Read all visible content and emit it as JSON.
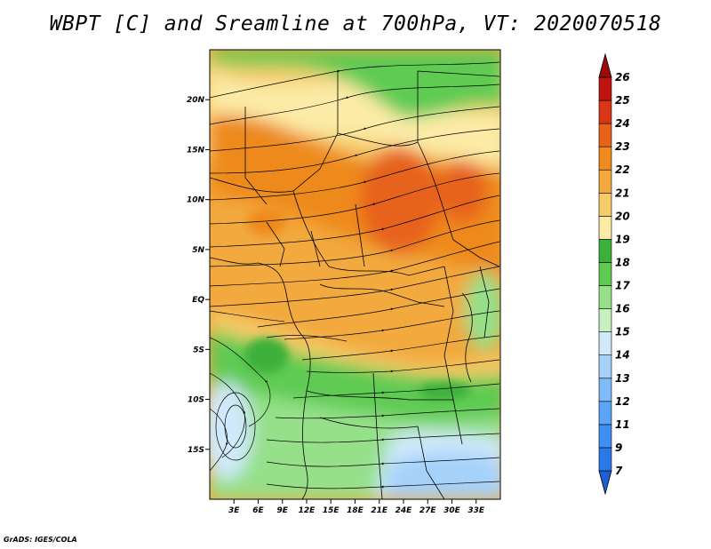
{
  "title": "WBPT [C] and Sreamline at 700hPa, VT: 2020070518",
  "credit": "GrADS: IGES/COLA",
  "chart_data": {
    "type": "heatmap",
    "title": "WBPT [C] and Sreamline at 700hPa, VT: 2020070518",
    "variable": "Wet-bulb potential temperature [C]",
    "overlay": "Streamlines at 700hPa",
    "valid_time": "2020070518",
    "xlim": [
      0,
      36
    ],
    "ylim": [
      -20,
      25
    ],
    "x_ticks": [
      {
        "value": 3,
        "label": "3E"
      },
      {
        "value": 6,
        "label": "6E"
      },
      {
        "value": 9,
        "label": "9E"
      },
      {
        "value": 12,
        "label": "12E"
      },
      {
        "value": 15,
        "label": "15E"
      },
      {
        "value": 18,
        "label": "18E"
      },
      {
        "value": 21,
        "label": "21E"
      },
      {
        "value": 24,
        "label": "24E"
      },
      {
        "value": 27,
        "label": "27E"
      },
      {
        "value": 30,
        "label": "30E"
      },
      {
        "value": 33,
        "label": "33E"
      }
    ],
    "y_ticks": [
      {
        "value": 20,
        "label": "20N"
      },
      {
        "value": 15,
        "label": "15N"
      },
      {
        "value": 10,
        "label": "10N"
      },
      {
        "value": 5,
        "label": "5N"
      },
      {
        "value": 0,
        "label": "EQ"
      },
      {
        "value": -5,
        "label": "5S"
      },
      {
        "value": -10,
        "label": "10S"
      },
      {
        "value": -15,
        "label": "15S"
      }
    ],
    "colorbar": {
      "levels": [
        7,
        9,
        11,
        12,
        13,
        14,
        15,
        16,
        17,
        18,
        19,
        20,
        21,
        22,
        23,
        24,
        25,
        26
      ],
      "colors": [
        "#1e5fd8",
        "#2c78e8",
        "#3e8fef",
        "#5aa5f5",
        "#7dbcf8",
        "#a6d2fa",
        "#d0e9fb",
        "#c8f0c0",
        "#96e08a",
        "#5fcb52",
        "#3cb03a",
        "#fbeba6",
        "#f6cc6a",
        "#f2a93e",
        "#ee8a1e",
        "#e7621a",
        "#d83616",
        "#c01410",
        "#9a0c0c"
      ]
    },
    "regions": [
      {
        "name": "northern-green-band",
        "value_range": "17-18"
      },
      {
        "name": "sahel-orange-band",
        "value_range": "21-23"
      },
      {
        "name": "equatorial-orange",
        "value_range": "21-22"
      },
      {
        "name": "southern-green",
        "value_range": "16-18"
      },
      {
        "name": "southeast-blue",
        "value_range": "13-15"
      }
    ]
  }
}
